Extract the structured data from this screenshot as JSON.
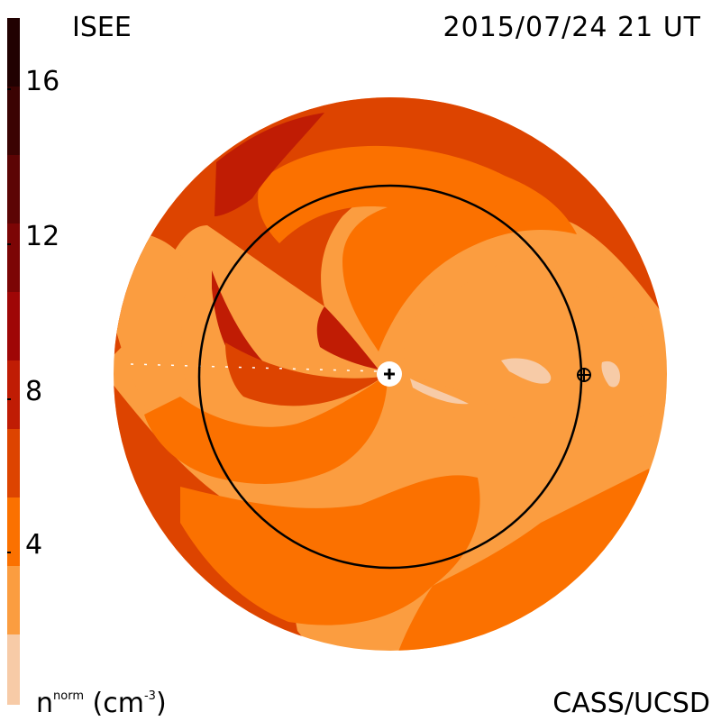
{
  "header": {
    "observatory": "ISEE",
    "timestamp": "2015/07/24 21 UT"
  },
  "footer": {
    "credit": "CASS/UCSD",
    "quantity_base": "n",
    "quantity_sup": "norm",
    "units_open": " (cm",
    "units_sup": "-3",
    "units_close": ")"
  },
  "colorbar": {
    "ticks": [
      "16",
      "12",
      "8",
      "4"
    ],
    "colors": [
      "#f7cba7",
      "#fb9d40",
      "#fb7100",
      "#dd4400",
      "#c01c04",
      "#9f0606",
      "#7c0505",
      "#5c0404",
      "#3b0302",
      "#210101"
    ]
  },
  "map": {
    "background": "#fb9d40",
    "earth_marker": "earth-marker",
    "sun_marker": "sun-marker"
  }
}
